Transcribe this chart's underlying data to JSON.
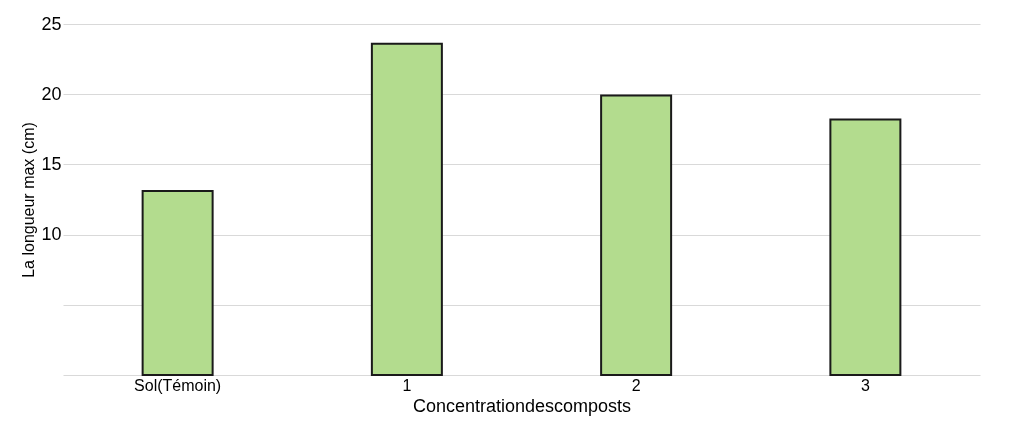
{
  "chart_data": {
    "type": "bar",
    "categories": [
      "Sol(Témoin)",
      "1",
      "2",
      "3"
    ],
    "values": [
      13.1,
      23.6,
      19.9,
      18.2
    ],
    "color": "#b3dc8e",
    "xlabel": "Concentrationdescomposts",
    "ylabel": "La longueur max (cm)",
    "ylim": [
      0,
      25
    ],
    "yticks": [
      {
        "value": 0,
        "label": null
      },
      {
        "value": 5,
        "label": null
      },
      10,
      15,
      20,
      25
    ],
    "grid": "y"
  }
}
